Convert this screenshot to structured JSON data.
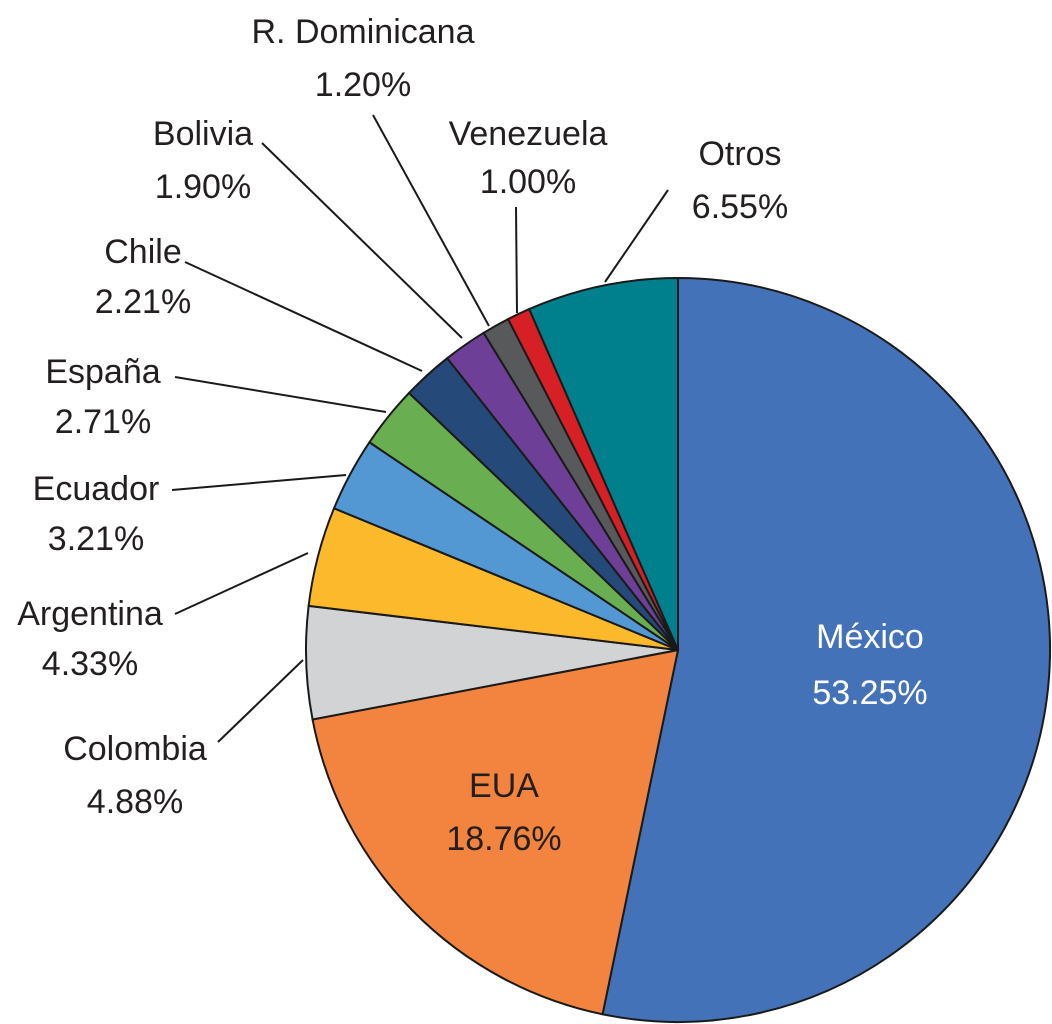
{
  "chart_data": {
    "type": "pie",
    "start": "top",
    "direction": "clockwise",
    "slices": [
      {
        "label": "México",
        "value": 53.25,
        "display": "53.25%",
        "color": "#4472b8",
        "text_color": "#ffffff"
      },
      {
        "label": "EUA",
        "value": 18.76,
        "display": "18.76%",
        "color": "#f28440",
        "text_color": "#231f20"
      },
      {
        "label": "Colombia",
        "value": 4.88,
        "display": "4.88%",
        "color": "#d2d3d5"
      },
      {
        "label": "Argentina",
        "value": 4.33,
        "display": "4.33%",
        "color": "#fdb92c"
      },
      {
        "label": "Ecuador",
        "value": 3.21,
        "display": "3.21%",
        "color": "#5398d3"
      },
      {
        "label": "España",
        "value": 2.71,
        "display": "2.71%",
        "color": "#6aae52"
      },
      {
        "label": "Chile",
        "value": 2.21,
        "display": "2.21%",
        "color": "#254979"
      },
      {
        "label": "Bolivia",
        "value": 1.9,
        "display": "1.90%",
        "color": "#6e3f97"
      },
      {
        "label": "R. Dominicana",
        "value": 1.2,
        "display": "1.20%",
        "color": "#58595b"
      },
      {
        "label": "Venezuela",
        "value": 1.0,
        "display": "1.00%",
        "color": "#d71f26"
      },
      {
        "label": "Otros",
        "value": 6.55,
        "display": "6.55%",
        "color": "#00808d"
      }
    ]
  }
}
